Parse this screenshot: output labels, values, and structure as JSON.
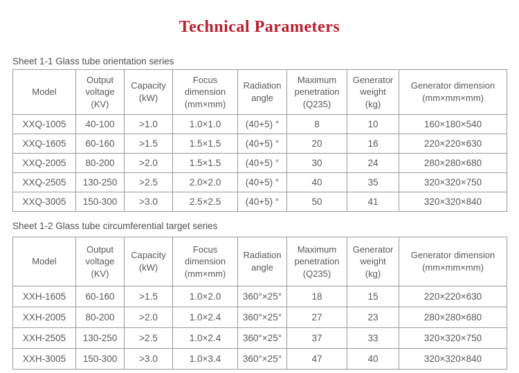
{
  "page": {
    "title": "Technical Parameters",
    "title_color": "#b81e2e"
  },
  "tables": [
    {
      "caption": "Sheet 1-1 Glass tube orientation series",
      "headers": [
        "Model",
        "Output\nvoltage\n(KV)",
        "Capacity\n(kW)",
        "Focus\ndimension\n(mm×mm)",
        "Radiation\nangle",
        "Maximum\npenetration\n(Q235)",
        "Generator\nweight\n(kg)",
        "Generator dimension\n(mm×mm×mm)"
      ],
      "rows": [
        [
          "XXQ-1005",
          "40-100",
          ">1.0",
          "1.0×1.0",
          "(40+5) °",
          "8",
          "10",
          "160×180×540"
        ],
        [
          "XXQ-1605",
          "60-160",
          ">1.5",
          "1.5×1.5",
          "(40+5) °",
          "20",
          "16",
          "220×220×630"
        ],
        [
          "XXQ-2005",
          "80-200",
          ">2.0",
          "1.5×1.5",
          "(40+5) °",
          "30",
          "24",
          "280×280×680"
        ],
        [
          "XXQ-2505",
          "130-250",
          ">2.5",
          "2.0×2.0",
          "(40+5) °",
          "40",
          "35",
          "320×320×750"
        ],
        [
          "XXQ-3005",
          "150-300",
          ">3.0",
          "2.5×2.5",
          "(40+5) °",
          "50",
          "41",
          "320×320×840"
        ]
      ]
    },
    {
      "caption": "Sheet 1-2 Glass tube circumferential target series",
      "headers": [
        "Model",
        "Output\nvoltage\n(KV)",
        "Capacity\n(kW)",
        "Focus\ndimension\n(mm×mm)",
        "Radiation\nangle",
        "Maximum\npenetration\n(Q235)",
        "Generator\nweight\n(kg)",
        "Generator dimension\n(mm×mm×mm)"
      ],
      "rows": [
        [
          "XXH-1605",
          "60-160",
          ">1.5",
          "1.0×2.0",
          "360°×25°",
          "18",
          "15",
          "220×220×630"
        ],
        [
          "XXH-2005",
          "80-200",
          ">2.0",
          "1.0×2.4",
          "360°×25°",
          "27",
          "23",
          "280×280×680"
        ],
        [
          "XXH-2505",
          "130-250",
          ">2.5",
          "1.0×2.4",
          "360°×25°",
          "37",
          "33",
          "320×320×750"
        ],
        [
          "XXH-3005",
          "150-300",
          ">3.0",
          "1.0×3.4",
          "360°×25°",
          "47",
          "40",
          "320×320×840"
        ]
      ]
    }
  ]
}
